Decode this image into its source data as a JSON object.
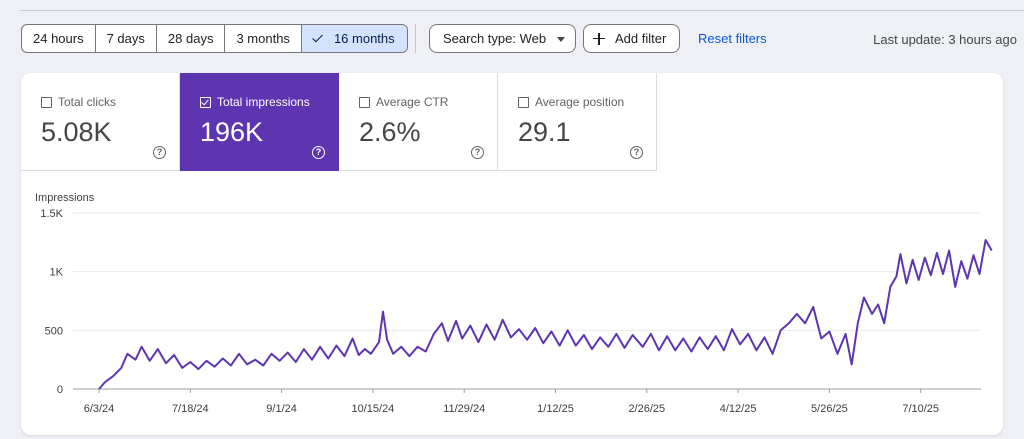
{
  "date_range": {
    "options": [
      {
        "label": "24 hours",
        "active": false
      },
      {
        "label": "7 days",
        "active": false
      },
      {
        "label": "28 days",
        "active": false
      },
      {
        "label": "3 months",
        "active": false
      },
      {
        "label": "16 months",
        "active": true
      }
    ]
  },
  "filters": {
    "search_type_label": "Search type: Web",
    "add_filter_label": "Add filter",
    "reset_label": "Reset filters"
  },
  "last_update": "Last update: 3 hours ago",
  "metrics": [
    {
      "label": "Total clicks",
      "value": "5.08K",
      "selected": false
    },
    {
      "label": "Total impressions",
      "value": "196K",
      "selected": true
    },
    {
      "label": "Average CTR",
      "value": "2.6%",
      "selected": false
    },
    {
      "label": "Average position",
      "value": "29.1",
      "selected": false
    }
  ],
  "colors": {
    "accent": "#5e35b1",
    "active_range": "#d3e3fd",
    "link": "#0b57d0"
  },
  "chart_data": {
    "type": "line",
    "title": "",
    "ylabel": "Impressions",
    "xlabel": "",
    "ylim": [
      0,
      1500
    ],
    "y_ticks": [
      0,
      500,
      1000,
      1500
    ],
    "y_tick_labels": [
      "0",
      "500",
      "1K",
      "1.5K"
    ],
    "x_tick_labels": [
      "6/3/24",
      "7/18/24",
      "9/1/24",
      "10/15/24",
      "11/29/24",
      "1/12/25",
      "2/26/25",
      "4/12/25",
      "5/26/25",
      "7/10/25"
    ],
    "grid": true,
    "series": [
      {
        "color": "#5e35b1",
        "points": [
          [
            "2024-06-03",
            0
          ],
          [
            "2024-06-06",
            60
          ],
          [
            "2024-06-10",
            110
          ],
          [
            "2024-06-14",
            180
          ],
          [
            "2024-06-17",
            300
          ],
          [
            "2024-06-21",
            250
          ],
          [
            "2024-06-24",
            360
          ],
          [
            "2024-06-28",
            240
          ],
          [
            "2024-07-02",
            340
          ],
          [
            "2024-07-06",
            220
          ],
          [
            "2024-07-10",
            290
          ],
          [
            "2024-07-14",
            180
          ],
          [
            "2024-07-18",
            230
          ],
          [
            "2024-07-22",
            170
          ],
          [
            "2024-07-26",
            240
          ],
          [
            "2024-07-30",
            190
          ],
          [
            "2024-08-03",
            260
          ],
          [
            "2024-08-07",
            200
          ],
          [
            "2024-08-11",
            300
          ],
          [
            "2024-08-15",
            210
          ],
          [
            "2024-08-19",
            250
          ],
          [
            "2024-08-23",
            200
          ],
          [
            "2024-08-27",
            300
          ],
          [
            "2024-08-31",
            240
          ],
          [
            "2024-09-04",
            310
          ],
          [
            "2024-09-08",
            230
          ],
          [
            "2024-09-12",
            340
          ],
          [
            "2024-09-16",
            250
          ],
          [
            "2024-09-20",
            360
          ],
          [
            "2024-09-24",
            260
          ],
          [
            "2024-09-28",
            370
          ],
          [
            "2024-10-02",
            280
          ],
          [
            "2024-10-06",
            430
          ],
          [
            "2024-10-09",
            290
          ],
          [
            "2024-10-12",
            340
          ],
          [
            "2024-10-15",
            300
          ],
          [
            "2024-10-19",
            400
          ],
          [
            "2024-10-21",
            660
          ],
          [
            "2024-10-23",
            420
          ],
          [
            "2024-10-26",
            300
          ],
          [
            "2024-10-30",
            360
          ],
          [
            "2024-11-03",
            280
          ],
          [
            "2024-11-07",
            360
          ],
          [
            "2024-11-11",
            320
          ],
          [
            "2024-11-15",
            470
          ],
          [
            "2024-11-19",
            560
          ],
          [
            "2024-11-22",
            410
          ],
          [
            "2024-11-26",
            580
          ],
          [
            "2024-11-29",
            430
          ],
          [
            "2024-12-03",
            540
          ],
          [
            "2024-12-07",
            400
          ],
          [
            "2024-12-11",
            550
          ],
          [
            "2024-12-15",
            420
          ],
          [
            "2024-12-19",
            590
          ],
          [
            "2024-12-23",
            440
          ],
          [
            "2024-12-27",
            510
          ],
          [
            "2024-12-31",
            420
          ],
          [
            "2025-01-04",
            520
          ],
          [
            "2025-01-08",
            390
          ],
          [
            "2025-01-12",
            490
          ],
          [
            "2025-01-16",
            370
          ],
          [
            "2025-01-20",
            500
          ],
          [
            "2025-01-24",
            370
          ],
          [
            "2025-01-28",
            460
          ],
          [
            "2025-02-01",
            340
          ],
          [
            "2025-02-05",
            440
          ],
          [
            "2025-02-09",
            360
          ],
          [
            "2025-02-13",
            470
          ],
          [
            "2025-02-17",
            350
          ],
          [
            "2025-02-21",
            460
          ],
          [
            "2025-02-26",
            360
          ],
          [
            "2025-03-02",
            470
          ],
          [
            "2025-03-06",
            330
          ],
          [
            "2025-03-10",
            450
          ],
          [
            "2025-03-14",
            330
          ],
          [
            "2025-03-18",
            430
          ],
          [
            "2025-03-22",
            320
          ],
          [
            "2025-03-26",
            440
          ],
          [
            "2025-03-30",
            340
          ],
          [
            "2025-04-03",
            450
          ],
          [
            "2025-04-07",
            330
          ],
          [
            "2025-04-11",
            510
          ],
          [
            "2025-04-15",
            380
          ],
          [
            "2025-04-19",
            470
          ],
          [
            "2025-04-23",
            330
          ],
          [
            "2025-04-27",
            440
          ],
          [
            "2025-05-01",
            300
          ],
          [
            "2025-05-05",
            500
          ],
          [
            "2025-05-09",
            560
          ],
          [
            "2025-05-13",
            640
          ],
          [
            "2025-05-17",
            560
          ],
          [
            "2025-05-21",
            700
          ],
          [
            "2025-05-25",
            430
          ],
          [
            "2025-05-29",
            490
          ],
          [
            "2025-06-02",
            300
          ],
          [
            "2025-06-06",
            470
          ],
          [
            "2025-06-09",
            210
          ],
          [
            "2025-06-12",
            560
          ],
          [
            "2025-06-15",
            780
          ],
          [
            "2025-06-19",
            640
          ],
          [
            "2025-06-22",
            720
          ],
          [
            "2025-06-25",
            560
          ],
          [
            "2025-06-28",
            870
          ],
          [
            "2025-07-01",
            960
          ],
          [
            "2025-07-03",
            1150
          ],
          [
            "2025-07-06",
            900
          ],
          [
            "2025-07-09",
            1100
          ],
          [
            "2025-07-12",
            930
          ],
          [
            "2025-07-15",
            1120
          ],
          [
            "2025-07-18",
            970
          ],
          [
            "2025-07-21",
            1160
          ],
          [
            "2025-07-24",
            980
          ],
          [
            "2025-07-27",
            1180
          ],
          [
            "2025-07-30",
            870
          ],
          [
            "2025-08-02",
            1090
          ],
          [
            "2025-08-05",
            940
          ],
          [
            "2025-08-08",
            1140
          ],
          [
            "2025-08-11",
            980
          ],
          [
            "2025-08-14",
            1270
          ],
          [
            "2025-08-17",
            1180
          ]
        ]
      }
    ]
  }
}
